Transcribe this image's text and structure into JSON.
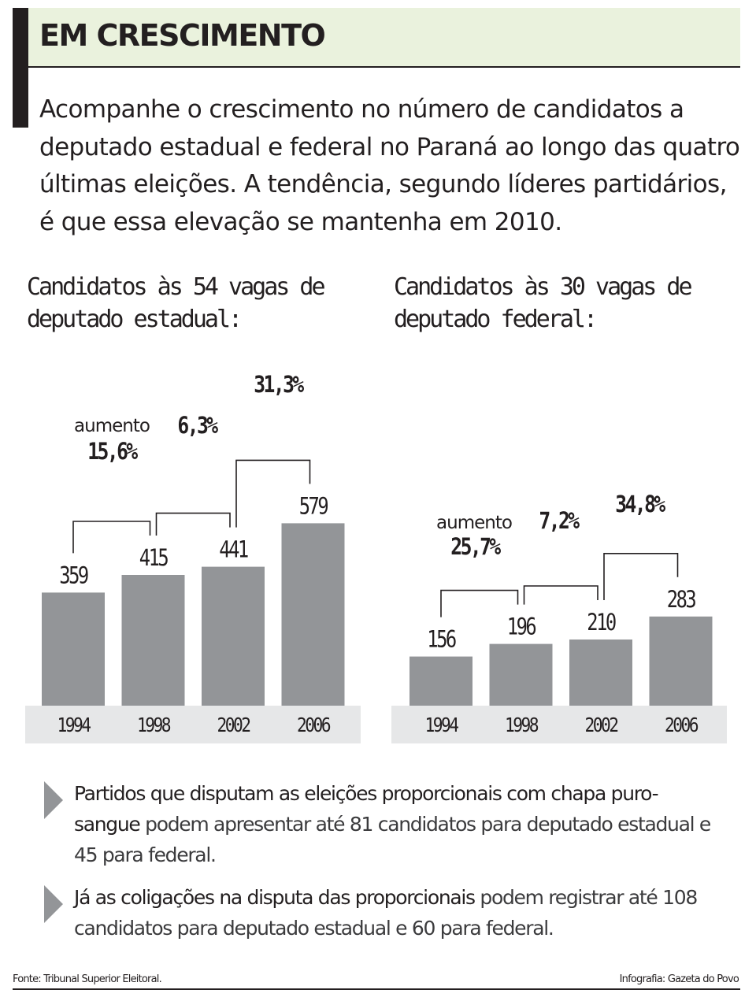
{
  "header": {
    "title": "EM CRESCIMENTO",
    "intro": "Acompanhe o crescimento no número de candidatos a deputado estadual e federal no Paraná ao longo das quatro últimas eleições. A tendência, segundo líderes partidários, é que essa elevação se mantenha em 2010."
  },
  "chart_titles": {
    "left": "Candidatos às 54 vagas de deputado estadual:",
    "right": "Candidatos às 30 vagas de deputado federal:"
  },
  "chart_data": [
    {
      "type": "bar",
      "title": "Candidatos às 54 vagas de deputado estadual:",
      "categories": [
        "1994",
        "1998",
        "2002",
        "2006"
      ],
      "values": [
        359,
        415,
        441,
        579
      ],
      "increase_prefix": "aumento",
      "increases": [
        "15,6%",
        "6,3%",
        "31,3%"
      ],
      "bar_color": "#939598",
      "axis_band_color": "#e6e7e8"
    },
    {
      "type": "bar",
      "title": "Candidatos às 30 vagas de deputado federal:",
      "categories": [
        "1994",
        "1998",
        "2002",
        "2006"
      ],
      "values": [
        156,
        196,
        210,
        283
      ],
      "increase_prefix": "aumento",
      "increases": [
        "25,7%",
        "7,2%",
        "34,8%"
      ],
      "bar_color": "#939598",
      "axis_band_color": "#e6e7e8"
    }
  ],
  "bullets": [
    {
      "strong": "Partidos que disputam as eleições proporcionais com chapa puro-sangue",
      "rest": " podem apresentar até 81 candidatos para deputado estadual e 45 para federal."
    },
    {
      "strong": "Já as coligações na disputa das proporcionais",
      "rest": " podem registrar até 108 candidatos para deputado estadual e 60 para federal."
    }
  ],
  "footer": {
    "source": "Fonte: Tribunal Superior Eleitoral.",
    "credit": "Infografia: Gazeta do Povo"
  },
  "colors": {
    "header_background": "#eaf2dd",
    "text": "#231f20",
    "bar": "#939598",
    "axis_band": "#e6e7e8"
  }
}
